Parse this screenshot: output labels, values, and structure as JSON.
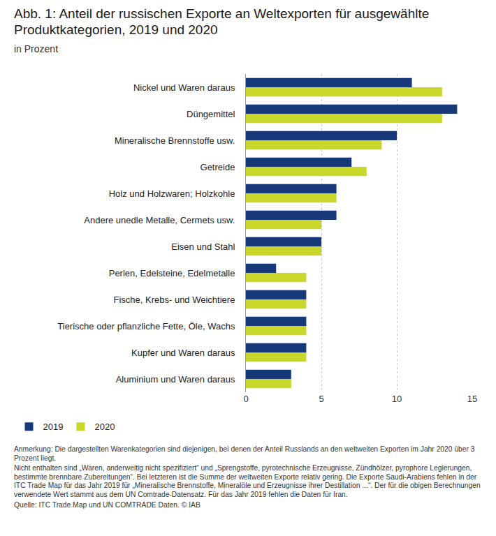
{
  "chart_data": {
    "type": "bar",
    "orientation": "horizontal",
    "title": "Abb. 1: Anteil der russischen Exporte an Weltexporten für ausgewählte Produktkategorien, 2019 und 2020",
    "subtitle": "in Prozent",
    "categories": [
      "Nickel und Waren daraus",
      "Düngemittel",
      "Mineralische Brennstoffe usw.",
      "Getreide",
      "Holz und Holzwaren; Holzkohle",
      "Andere unedle Metalle, Cermets usw.",
      "Eisen und Stahl",
      "Perlen, Edelsteine, Edelmetalle",
      "Fische, Krebs- und Weichtiere",
      "Tierische oder pflanzliche Fette, Öle, Wachs",
      "Kupfer und Waren daraus",
      "Aluminium und Waren daraus"
    ],
    "series": [
      {
        "name": "2019",
        "color": "#17397a",
        "values": [
          11,
          14,
          10,
          7,
          6,
          6,
          5,
          2,
          4,
          4,
          4,
          3
        ]
      },
      {
        "name": "2020",
        "color": "#c9d72a",
        "values": [
          13,
          13,
          9,
          8,
          6,
          5,
          5,
          4,
          4,
          4,
          4,
          3
        ]
      }
    ],
    "xlim": [
      0,
      15
    ],
    "xticks": [
      0,
      5,
      10,
      15
    ],
    "grid": true,
    "legend": "bottom left",
    "annotations": [
      "Anmerkung: Die dargestellten Warenkategorien sind diejenigen, bei denen der Anteil Russlands an den weltweiten Exporten im Jahr 2020 über 3 Prozent liegt.",
      "Nicht enthalten sind „Waren, anderweitig nicht spezifiziert“ und „Sprengstoffe, pyrotechnische Erzeugnisse, Zündhölzer, pyrophore Legierungen, bestimmte brennbare Zubereitungen“. Bei letzteren ist die Summe der weltweiten Exporte relativ gering. Die Exporte Saudi-Arabiens fehlen in der ITC Trade Map für das Jahr 2019 für „Mineralische Brennstoffe, Mineralöle und Erzeugnisse ihrer Destillation ...“. Der für die obigen Berechnungen verwendete Wert stammt aus dem UN Comtrade-Datensatz. Für das Jahr 2019 fehlen die Daten für Iran.",
      "Quelle: ITC Trade Map und UN COMTRADE Daten. © IAB"
    ]
  }
}
